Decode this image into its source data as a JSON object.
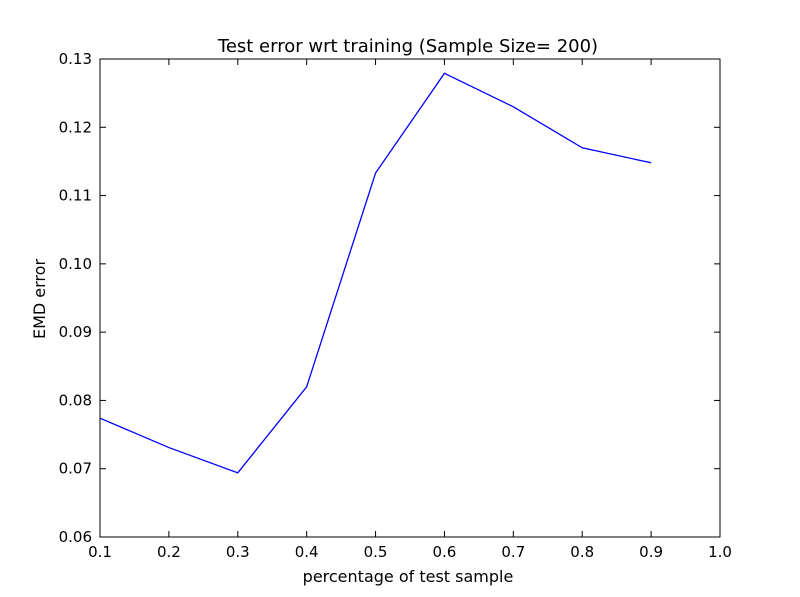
{
  "chart_data": {
    "type": "line",
    "title": "Test error wrt training (Sample Size= 200)",
    "xlabel": "percentage of test sample",
    "ylabel": "EMD error",
    "xlim": [
      0.1,
      1.0
    ],
    "ylim": [
      0.06,
      0.13
    ],
    "xticks": [
      "0.1",
      "0.2",
      "0.3",
      "0.4",
      "0.5",
      "0.6",
      "0.7",
      "0.8",
      "0.9",
      "1.0"
    ],
    "yticks": [
      "0.06",
      "0.07",
      "0.08",
      "0.09",
      "0.10",
      "0.11",
      "0.12",
      "0.13"
    ],
    "grid": false,
    "series": [
      {
        "color": "#0000ff",
        "x": [
          0.1,
          0.2,
          0.3,
          0.4,
          0.5,
          0.6,
          0.7,
          0.8,
          0.9
        ],
        "y": [
          0.0774,
          0.0731,
          0.0694,
          0.082,
          0.1133,
          0.1279,
          0.123,
          0.117,
          0.1148
        ]
      }
    ]
  }
}
